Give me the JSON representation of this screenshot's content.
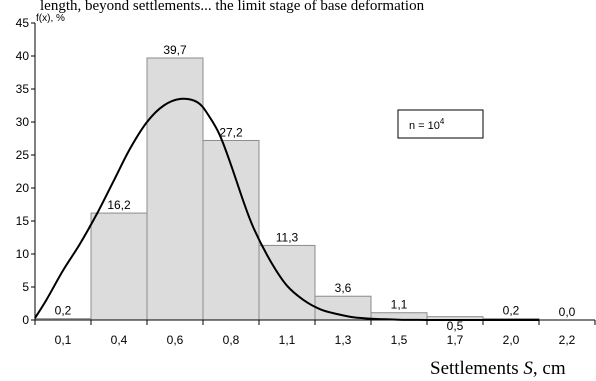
{
  "header_fragment": "length, beyond settlements... the limit stage of base deformation",
  "chart_data": {
    "type": "bar",
    "categories": [
      "0,1",
      "0,4",
      "0,6",
      "0,8",
      "1,1",
      "1,3",
      "1,5",
      "1,7",
      "2,0",
      "2,2"
    ],
    "values": [
      0.2,
      16.2,
      39.7,
      27.2,
      11.3,
      3.6,
      1.1,
      0.5,
      0.2,
      0.0
    ],
    "data_labels": [
      "0,2",
      "16,2",
      "39,7",
      "27,2",
      "11,3",
      "3,6",
      "1,1",
      "0,5",
      "0,2",
      "0,0"
    ],
    "ylabel": "f(x), %",
    "xlabel_prefix": "Settlements ",
    "xlabel_var": "S",
    "xlabel_suffix": ", cm",
    "ylim": [
      0,
      45
    ],
    "yticks": [
      0,
      5,
      10,
      15,
      20,
      25,
      30,
      35,
      40,
      45
    ],
    "annotation_base": "n = 10",
    "annotation_exp": "4",
    "series": [
      {
        "kind": "density-curve",
        "x": [
          0.0,
          0.2,
          0.5,
          0.8,
          1.1,
          1.4,
          1.7,
          2.0,
          2.3,
          2.6,
          2.9,
          3.1,
          3.3,
          3.5,
          3.7,
          3.9,
          4.2,
          4.5,
          4.8,
          5.1,
          5.4,
          5.7,
          6.0,
          6.5,
          7.0,
          7.6,
          8.3,
          9.0
        ],
        "y": [
          0.3,
          3.0,
          7.5,
          11.5,
          16.0,
          21.0,
          26.0,
          30.0,
          32.5,
          33.5,
          33.0,
          31.0,
          28.0,
          23.5,
          18.5,
          14.0,
          9.0,
          5.2,
          3.0,
          1.6,
          0.9,
          0.4,
          0.2,
          0.05,
          0.0,
          0.0,
          0.0,
          0.0
        ]
      }
    ],
    "grid": false,
    "legend": "none",
    "colors": {
      "bar_fill": "#dcdcdc",
      "bar_stroke": "#8c8c8c",
      "curve": "#000000"
    }
  }
}
